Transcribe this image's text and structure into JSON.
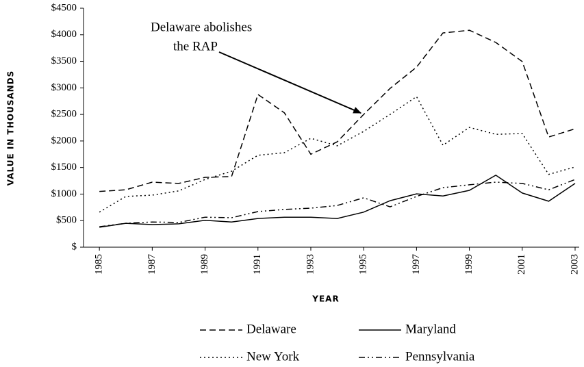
{
  "chart_data": {
    "type": "line",
    "x_label": "YEAR",
    "y_label": "VALUE IN THOUSANDS",
    "annotation": [
      "Delaware abolishes",
      "the RAP"
    ],
    "annotation_target": [
      1995,
      2500
    ],
    "x": [
      1985,
      1986,
      1987,
      1988,
      1989,
      1990,
      1991,
      1992,
      1993,
      1994,
      1995,
      1996,
      1997,
      1998,
      1999,
      2000,
      2001,
      2002,
      2003
    ],
    "xlim": [
      1984.4,
      2003
    ],
    "xticks": [
      1985,
      1987,
      1989,
      1991,
      1993,
      1995,
      1997,
      1999,
      2001,
      2003
    ],
    "ylim": [
      0,
      4500
    ],
    "yticks": [
      {
        "value": 0,
        "label": "$"
      },
      {
        "value": 500,
        "label": "$500"
      },
      {
        "value": 1000,
        "label": "$1000"
      },
      {
        "value": 1500,
        "label": "$1500"
      },
      {
        "value": 2000,
        "label": "$2000"
      },
      {
        "value": 2500,
        "label": "$2500"
      },
      {
        "value": 3000,
        "label": "$3000"
      },
      {
        "value": 3500,
        "label": "$3500"
      },
      {
        "value": 4000,
        "label": "$4000"
      },
      {
        "value": 4500,
        "label": "$4500"
      }
    ],
    "grid": false,
    "series": [
      {
        "name": "Delaware",
        "color": "#000000",
        "dash": "9,5",
        "values": [
          1050,
          1080,
          1225,
          1200,
          1315,
          1330,
          2875,
          2530,
          1750,
          1985,
          2500,
          2990,
          3390,
          4035,
          4085,
          3855,
          3495,
          2075,
          2230
        ]
      },
      {
        "name": "Maryland",
        "color": "#000000",
        "dash": "none",
        "values": [
          375,
          450,
          425,
          440,
          505,
          475,
          540,
          565,
          565,
          540,
          660,
          875,
          1005,
          965,
          1070,
          1355,
          1020,
          865,
          1200
        ]
      },
      {
        "name": "New York",
        "color": "#000000",
        "dash": "2,4",
        "values": [
          660,
          955,
          980,
          1060,
          1275,
          1430,
          1730,
          1780,
          2050,
          1910,
          2180,
          2500,
          2835,
          1920,
          2255,
          2125,
          2140,
          1370,
          1510
        ]
      },
      {
        "name": "Pennsylvania",
        "color": "#000000",
        "dash": "9,4,2,4,2,4",
        "values": [
          385,
          450,
          475,
          465,
          565,
          555,
          670,
          710,
          735,
          785,
          930,
          760,
          955,
          1120,
          1175,
          1225,
          1200,
          1080,
          1275
        ]
      }
    ]
  }
}
